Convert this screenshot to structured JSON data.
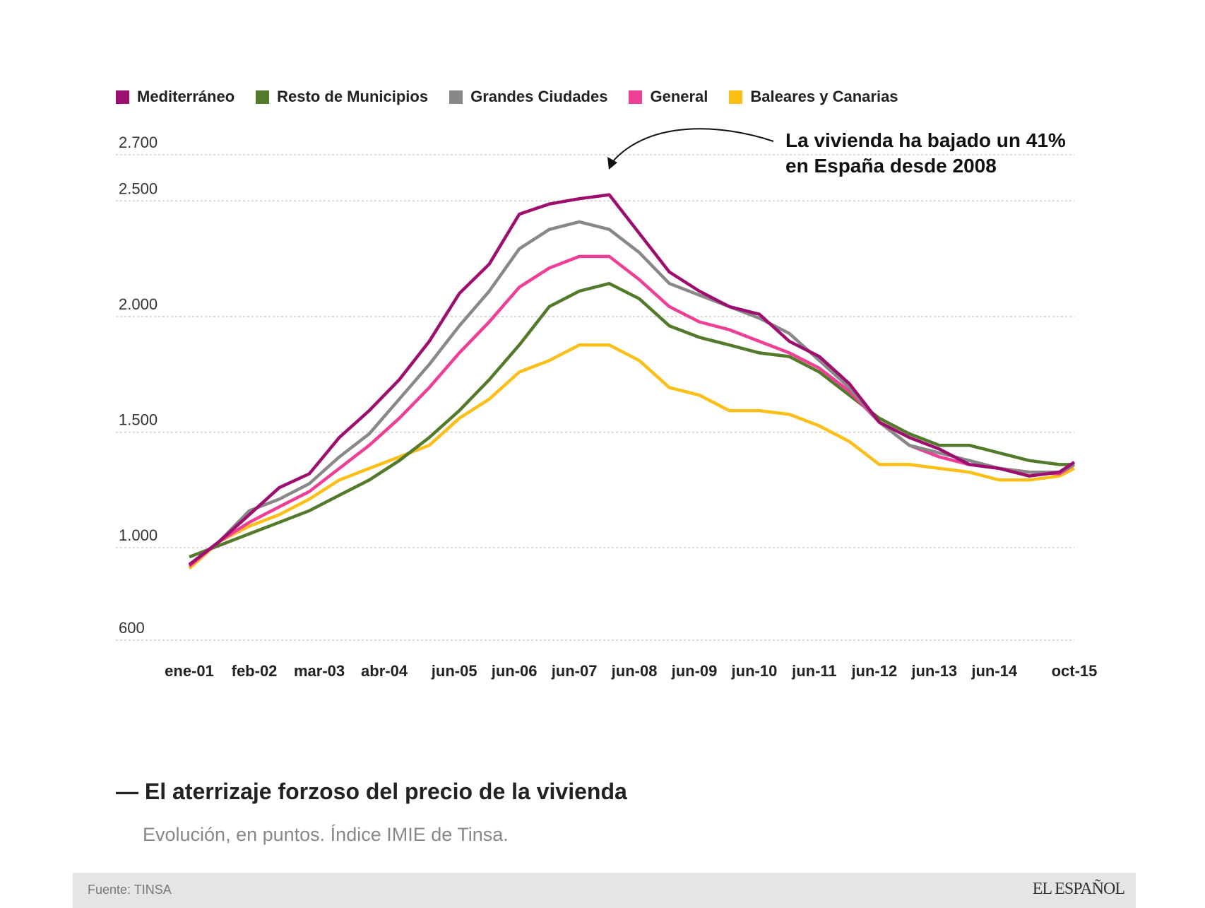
{
  "chart_data": {
    "type": "line",
    "title": "El aterrizaje forzoso del precio de la vivienda",
    "subtitle": "Evolución, en puntos. Índice IMIE de Tinsa.",
    "ylim": [
      600,
      2700
    ],
    "yticks": [
      600,
      1000,
      1500,
      2000,
      2500,
      2700
    ],
    "ytick_labels": [
      "600",
      "1.000",
      "1.500",
      "2.000",
      "2.500",
      "2.700"
    ],
    "xtick_labels": [
      "ene-01",
      "feb-02",
      "mar-03",
      "abr-04",
      "jun-05",
      "jun-06",
      "jun-07",
      "jun-08",
      "jun-09",
      "jun-10",
      "jun-11",
      "jun-12",
      "jun-13",
      "jun-14",
      "oct-15"
    ],
    "xtick_dates": [
      "2001-01",
      "2002-02",
      "2003-03",
      "2004-04",
      "2005-06",
      "2006-06",
      "2007-06",
      "2008-06",
      "2009-06",
      "2010-06",
      "2011-06",
      "2012-06",
      "2013-06",
      "2014-06",
      "2015-10"
    ],
    "grid": true,
    "legend_position": "top-left",
    "x": [
      "2001-01",
      "2001-07",
      "2002-01",
      "2002-07",
      "2003-01",
      "2003-07",
      "2004-01",
      "2004-07",
      "2005-01",
      "2005-07",
      "2006-01",
      "2006-07",
      "2007-01",
      "2007-07",
      "2008-01",
      "2008-07",
      "2009-01",
      "2009-07",
      "2010-01",
      "2010-07",
      "2011-01",
      "2011-07",
      "2012-01",
      "2012-07",
      "2013-01",
      "2013-07",
      "2014-01",
      "2014-07",
      "2015-01",
      "2015-07",
      "2015-10"
    ],
    "series": [
      {
        "name": "Mediterráneo",
        "color": "#9e0e6f",
        "values": [
          927,
          1027,
          1143,
          1260,
          1320,
          1477,
          1593,
          1727,
          1893,
          2100,
          2227,
          2443,
          2487,
          2510,
          2527,
          2360,
          2193,
          2110,
          2043,
          2010,
          1893,
          1827,
          1710,
          1543,
          1477,
          1427,
          1360,
          1343,
          1310,
          1327,
          1370
        ]
      },
      {
        "name": "Resto de Municipios",
        "color": "#527a2a",
        "values": [
          960,
          1010,
          1060,
          1110,
          1160,
          1227,
          1293,
          1377,
          1477,
          1593,
          1727,
          1877,
          2043,
          2110,
          2143,
          2077,
          1960,
          1910,
          1877,
          1843,
          1827,
          1760,
          1660,
          1560,
          1493,
          1443,
          1443,
          1410,
          1377,
          1360,
          1360
        ]
      },
      {
        "name": "Grandes Ciudades",
        "color": "#888888",
        "values": [
          927,
          1027,
          1160,
          1210,
          1277,
          1393,
          1493,
          1643,
          1793,
          1960,
          2110,
          2293,
          2377,
          2410,
          2377,
          2277,
          2143,
          2093,
          2043,
          1993,
          1927,
          1810,
          1693,
          1543,
          1443,
          1410,
          1377,
          1343,
          1327,
          1327,
          1360
        ]
      },
      {
        "name": "General",
        "color": "#ef3e96",
        "values": [
          920,
          1027,
          1110,
          1177,
          1243,
          1343,
          1443,
          1560,
          1693,
          1843,
          1977,
          2127,
          2210,
          2260,
          2260,
          2160,
          2043,
          1977,
          1943,
          1893,
          1843,
          1777,
          1677,
          1543,
          1443,
          1393,
          1360,
          1343,
          1327,
          1320,
          1360
        ]
      },
      {
        "name": "Baleares y Canarias",
        "color": "#fbbf18",
        "values": [
          910,
          1027,
          1093,
          1143,
          1210,
          1293,
          1343,
          1393,
          1443,
          1560,
          1643,
          1760,
          1810,
          1877,
          1877,
          1810,
          1693,
          1660,
          1593,
          1593,
          1577,
          1527,
          1460,
          1360,
          1360,
          1343,
          1327,
          1293,
          1293,
          1310,
          1343
        ]
      }
    ],
    "annotation": {
      "line1": "La vivienda ha bajado un 41%",
      "line2": "en España desde 2008"
    }
  },
  "footer": {
    "source": "Fuente: TINSA",
    "logo": "EL ESPAÑOL"
  }
}
